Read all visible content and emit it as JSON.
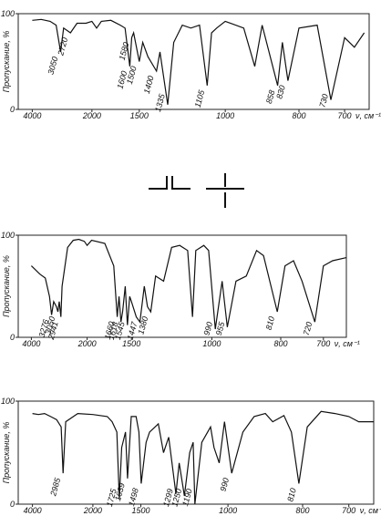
{
  "chart_data": [
    {
      "type": "line",
      "ylabel": "Пропускание, %",
      "xlabel": "ν, см⁻¹",
      "xlim": [
        4100,
        650
      ],
      "xticks": [
        4000,
        2000,
        1500,
        1000,
        800,
        700
      ],
      "ylim": [
        0,
        100
      ],
      "yticks": [
        0,
        100
      ],
      "color": "#111",
      "x": [
        4000,
        3700,
        3400,
        3200,
        3050,
        2950,
        2720,
        2500,
        2200,
        2000,
        1950,
        1900,
        1800,
        1700,
        1650,
        1600,
        1580,
        1560,
        1500,
        1480,
        1450,
        1400,
        1380,
        1335,
        1300,
        1250,
        1200,
        1150,
        1105,
        1080,
        1050,
        1000,
        950,
        920,
        900,
        858,
        845,
        830,
        800,
        760,
        730,
        700,
        680,
        660
      ],
      "values": [
        93,
        94,
        92,
        88,
        60,
        85,
        80,
        90,
        90,
        92,
        85,
        92,
        93,
        88,
        85,
        45,
        75,
        80,
        50,
        70,
        55,
        40,
        60,
        5,
        70,
        88,
        85,
        88,
        25,
        80,
        85,
        92,
        85,
        45,
        88,
        25,
        70,
        30,
        85,
        88,
        10,
        75,
        65,
        80
      ],
      "peaks": [
        3050,
        2720,
        1600,
        1580,
        1500,
        1400,
        1335,
        1105,
        858,
        830,
        730
      ]
    },
    {
      "type": "line",
      "ylabel": "Пропускание, %",
      "xlabel": "ν, см⁻¹",
      "xlim": [
        4100,
        650
      ],
      "xticks": [
        4000,
        2000,
        1500,
        1000,
        800,
        700
      ],
      "ylim": [
        0,
        100
      ],
      "yticks": [
        0,
        100
      ],
      "color": "#111",
      "x": [
        4000,
        3700,
        3500,
        3350,
        3276,
        3200,
        3100,
        3050,
        3000,
        2941,
        2900,
        2700,
        2500,
        2300,
        2100,
        2000,
        1950,
        1800,
        1700,
        1660,
        1640,
        1618,
        1600,
        1570,
        1545,
        1520,
        1500,
        1470,
        1447,
        1420,
        1400,
        1380,
        1350,
        1300,
        1250,
        1200,
        1150,
        1120,
        1100,
        1050,
        1020,
        990,
        970,
        955,
        930,
        900,
        870,
        850,
        810,
        790,
        770,
        750,
        720,
        700,
        680,
        650
      ],
      "values": [
        70,
        62,
        58,
        40,
        22,
        35,
        30,
        25,
        35,
        20,
        50,
        88,
        95,
        96,
        94,
        90,
        95,
        92,
        70,
        20,
        40,
        15,
        25,
        50,
        12,
        40,
        35,
        20,
        15,
        50,
        30,
        25,
        60,
        55,
        88,
        90,
        85,
        20,
        85,
        90,
        85,
        8,
        55,
        10,
        55,
        60,
        85,
        80,
        25,
        70,
        75,
        55,
        15,
        70,
        75,
        78
      ],
      "peaks": [
        3276,
        3050,
        2941,
        1660,
        1618,
        1545,
        1447,
        1380,
        990,
        955,
        810,
        720
      ]
    },
    {
      "type": "line",
      "ylabel": "Пропускание, %",
      "xlabel": "ν, см⁻¹",
      "xlim": [
        4100,
        650
      ],
      "xticks": [
        4000,
        2000,
        1500,
        1000,
        800,
        700
      ],
      "ylim": [
        0,
        100
      ],
      "yticks": [
        0,
        100
      ],
      "color": "#111",
      "x": [
        4000,
        3800,
        3600,
        3400,
        3200,
        3050,
        2985,
        2900,
        2500,
        2000,
        1850,
        1800,
        1750,
        1725,
        1700,
        1660,
        1639,
        1600,
        1550,
        1520,
        1498,
        1470,
        1450,
        1400,
        1370,
        1340,
        1299,
        1280,
        1250,
        1220,
        1200,
        1190,
        1150,
        1100,
        1080,
        1050,
        1020,
        990,
        960,
        930,
        900,
        880,
        850,
        830,
        810,
        790,
        760,
        730,
        700,
        680,
        650
      ],
      "values": [
        88,
        87,
        88,
        85,
        82,
        75,
        30,
        80,
        88,
        87,
        85,
        80,
        70,
        5,
        55,
        70,
        25,
        85,
        85,
        70,
        20,
        60,
        70,
        78,
        50,
        65,
        10,
        40,
        8,
        50,
        60,
        0,
        60,
        75,
        55,
        40,
        80,
        30,
        70,
        85,
        88,
        80,
        86,
        70,
        20,
        75,
        90,
        88,
        85,
        80,
        80
      ],
      "peaks": [
        2985,
        1725,
        1639,
        1498,
        1299,
        1250,
        1190,
        990,
        810
      ]
    }
  ]
}
